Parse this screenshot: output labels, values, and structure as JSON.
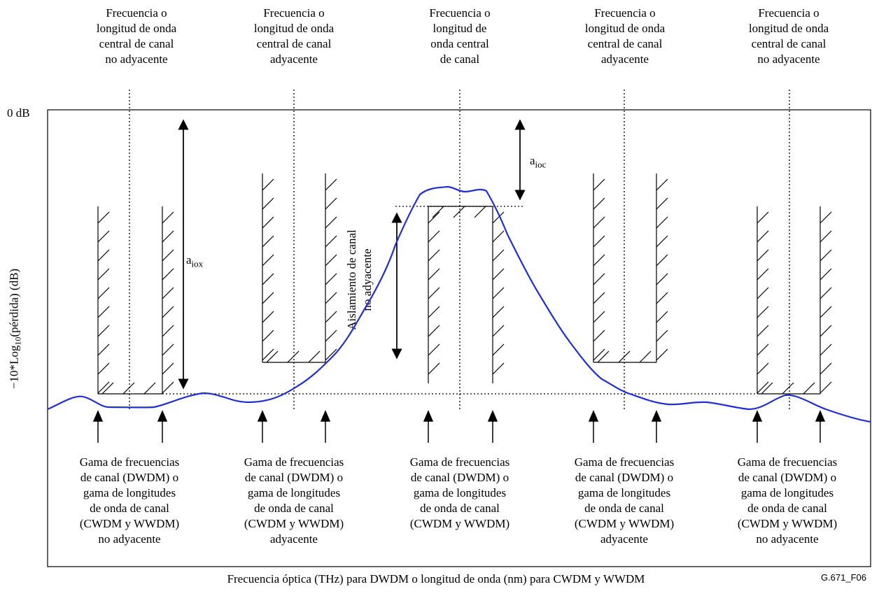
{
  "labels": {
    "top": [
      "Frecuencia o\nlongitud de onda\ncentral de canal\nno adyacente",
      "Frecuencia o\nlongitud de onda\ncentral de canal\nadyacente",
      "Frecuencia o\nlongitud de\nonda central\nde canal",
      "Frecuencia o\nlongitud de onda\ncentral de canal\nadyacente",
      "Frecuencia o\nlongitud de onda\ncentral de canal\nno adyacente"
    ],
    "bottom": [
      "Gama de frecuencias\nde canal (DWDM) o\ngama de longitudes\nde onda de canal\n(CWDM y WWDM)\nno adyacente",
      "Gama de frecuencias\nde canal (DWDM) o\ngama de longitudes\nde onda de canal\n(CWDM y WWDM)\nadyacente",
      "Gama de frecuencias\nde canal (DWDM) o\ngama de longitudes\nde onda de canal\n(CWDM y WWDM)",
      "Gama de frecuencias\nde canal (DWDM) o\ngama de longitudes\nde onda de canal\n(CWDM y WWDM)\nadyacente",
      "Gama de frecuencias\nde canal (DWDM) o\ngama de longitudes\nde onda de canal\n(CWDM y WWDM)\nno adyacente"
    ],
    "zero_db": "0 dB",
    "y_axis_prefix": "−10*Log",
    "y_axis_sub": "10",
    "y_axis_suffix": "(pérdida) (dB)",
    "x_axis": "Frecuencia óptica (THz) para DWDM o longitud de onda (nm) para CWDM y WWDM",
    "a_iox_base": "a",
    "a_iox_sub": "iox",
    "a_ioc_base": "a",
    "a_ioc_sub": "ioc",
    "isolation_line1": "Aislamiento de canal",
    "isolation_line2": "no adyacente",
    "figure_code": "G.671_F06"
  },
  "colors": {
    "curve": "#1f2fd6",
    "lines": "#000000"
  }
}
